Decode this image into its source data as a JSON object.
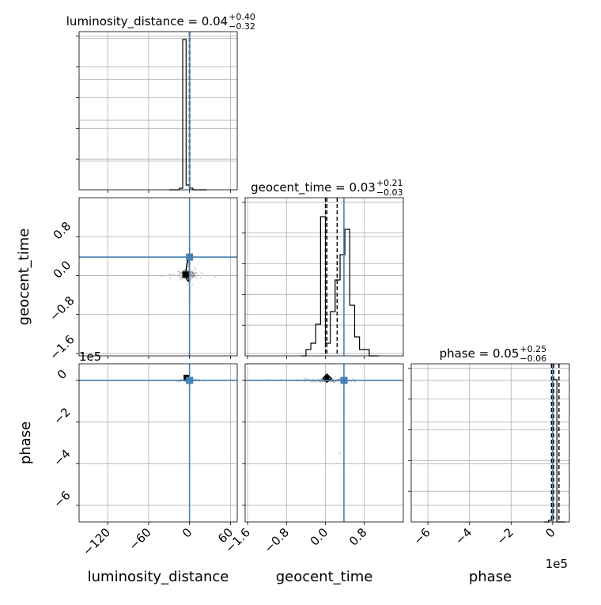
{
  "chart_data": {
    "type": "corner",
    "parameters": [
      "luminosity_distance",
      "geocent_time",
      "phase"
    ],
    "titles": [
      {
        "param": "luminosity_distance",
        "median": "0.04",
        "plus": "+0.40",
        "minus": "−0.32"
      },
      {
        "param": "geocent_time",
        "median": "0.03",
        "plus": "+0.21",
        "minus": "−0.03"
      },
      {
        "param": "phase",
        "median": "0.05",
        "plus": "+0.25",
        "minus": "−0.06"
      }
    ],
    "axes": {
      "luminosity_distance": {
        "range": [
          -162,
          70
        ],
        "ticks": [
          -120,
          -60,
          0,
          60
        ],
        "tick_labels": [
          "−120",
          "−60",
          "0",
          "60"
        ]
      },
      "geocent_time": {
        "range": [
          -1.65,
          1.6
        ],
        "ticks": [
          -1.6,
          -0.8,
          0.0,
          0.8
        ],
        "tick_labels": [
          "−1.6",
          "−0.8",
          "0.0",
          "0.8"
        ]
      },
      "phase": {
        "range": [
          -680000,
          80000
        ],
        "ticks": [
          -600000,
          -400000,
          -200000,
          0
        ],
        "tick_labels": [
          "−6",
          "−4",
          "−2",
          "0"
        ],
        "offset_label": "1e5"
      }
    },
    "truths": {
      "luminosity_distance": 0,
      "geocent_time": 0.38,
      "phase": 0
    },
    "histograms": {
      "luminosity_distance": {
        "bins": [
          -30,
          -25,
          -20,
          -15,
          -10,
          -5,
          0,
          5,
          10,
          15,
          20,
          25
        ],
        "counts": [
          0,
          0,
          0,
          1,
          95,
          3,
          1,
          0,
          0,
          0,
          0
        ],
        "quantiles": [
          -0.28,
          0.04,
          0.44
        ],
        "ylim": [
          0,
          100
        ]
      },
      "geocent_time": {
        "bins": [
          -0.5,
          -0.4,
          -0.3,
          -0.2,
          -0.1,
          0.0,
          0.1,
          0.2,
          0.3,
          0.4,
          0.5,
          0.6,
          0.7,
          0.8,
          0.9,
          1.0,
          1.1
        ],
        "counts": [
          0,
          1,
          2,
          5,
          22,
          2,
          7,
          12,
          16,
          20,
          8,
          3,
          1,
          1,
          0,
          0
        ],
        "quantiles": [
          0.0,
          0.03,
          0.24
        ],
        "ylim": [
          0,
          25
        ]
      },
      "phase": {
        "bins": [
          -40000,
          -20000,
          0,
          20000,
          40000,
          60000
        ],
        "counts": [
          0,
          1,
          90,
          0,
          0
        ],
        "quantiles": [
          -6000,
          5000,
          30000
        ],
        "ylim": [
          0,
          100
        ]
      }
    },
    "grid": true,
    "color": "#000000",
    "truth_color": "#4682b4"
  },
  "labels": {
    "xlabel_0": "luminosity_distance",
    "xlabel_1": "geocent_time",
    "xlabel_2": "phase",
    "ylabel_1": "geocent_time",
    "ylabel_2": "phase",
    "offset_y_phase": "1e5",
    "offset_x_phase": "1e5"
  }
}
